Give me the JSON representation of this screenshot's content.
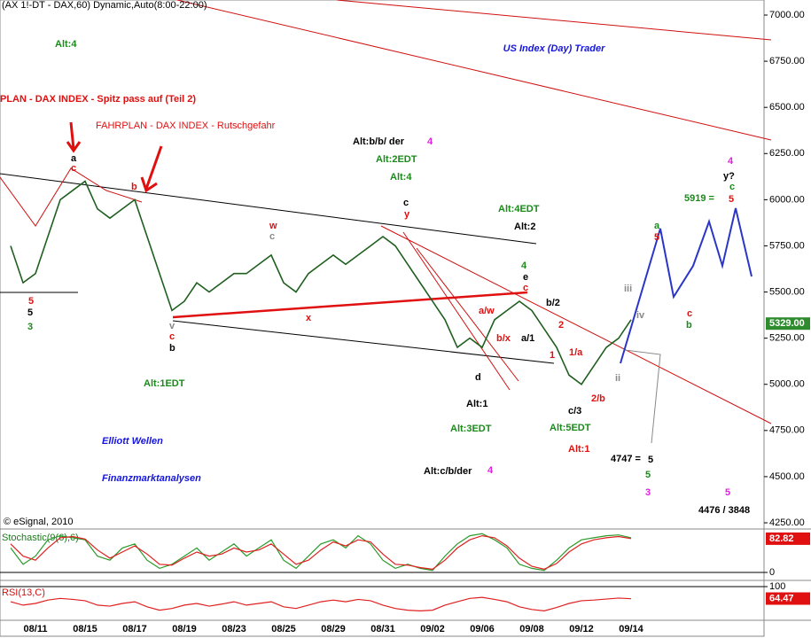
{
  "chart_data": [
    {
      "type": "line",
      "title": "(AX 1!-DT - DAX,60) Dynamic,Auto(8:00-22:00)",
      "categories": [
        null,
        null,
        "08/11",
        null,
        null,
        null,
        "08/15",
        null,
        null,
        null,
        "08/17",
        null,
        null,
        null,
        "08/19",
        null,
        null,
        null,
        "08/23",
        null,
        null,
        null,
        "08/25",
        null,
        null,
        null,
        "08/29",
        null,
        null,
        null,
        "08/31",
        null,
        null,
        null,
        "09/02",
        null,
        null,
        null,
        "09/06",
        null,
        null,
        null,
        "09/08",
        null,
        null,
        null,
        "09/12",
        null,
        null,
        null,
        "09/14"
      ],
      "values": [
        5750,
        5550,
        5600,
        5800,
        6000,
        6050,
        6100,
        5950,
        5900,
        5950,
        6000,
        5800,
        5600,
        5400,
        5450,
        5550,
        5500,
        5550,
        5600,
        5600,
        5650,
        5700,
        5550,
        5500,
        5600,
        5650,
        5700,
        5650,
        5700,
        5750,
        5800,
        5750,
        5650,
        5550,
        5450,
        5350,
        5200,
        5250,
        5200,
        5350,
        5400,
        5450,
        5400,
        5300,
        5200,
        5050,
        5000,
        5100,
        5200,
        5250,
        5350
      ],
      "color": "#1f5f1f",
      "ylim": [
        4250,
        7000
      ],
      "yticks": [
        {
          "value": 4250,
          "label": "4250.00"
        },
        {
          "value": 4500,
          "label": "4500.00"
        },
        {
          "value": 4750,
          "label": "4750.00"
        },
        {
          "value": 5000,
          "label": "5000.00"
        },
        {
          "value": 5250,
          "label": "5250.00"
        },
        {
          "value": 5500,
          "label": "5500.00"
        },
        {
          "value": 5750,
          "label": "5750.00"
        },
        {
          "value": 6000,
          "label": "6000.00"
        },
        {
          "value": 6250,
          "label": "6250.00"
        },
        {
          "value": 6500,
          "label": "6500.00"
        },
        {
          "value": 6750,
          "label": "6750.00"
        },
        {
          "value": 7000,
          "label": "7000.00"
        }
      ],
      "last_label": {
        "value": 5329,
        "label": "5329.00"
      },
      "annotations": [
        "Alt:4",
        "PLAN - DAX INDEX - Spitz pass auf (Teil 2)",
        "FAHRPLAN - DAX INDEX - Rutschgefahr",
        "US Index (Day) Trader",
        "Elliott Wellen",
        "Finanzmarktanalysen",
        "Alt:b/b/ der",
        "4",
        "Alt:2EDT",
        "Alt:4",
        "c",
        "y",
        "Alt:4EDT",
        "Alt:2",
        "4",
        "e",
        "c",
        "b/2",
        "a/w",
        "b/x",
        "a/1",
        "d",
        "Alt:1",
        "Alt:3EDT",
        "c/3",
        "Alt:5EDT",
        "Alt:1",
        "4747 =",
        "5",
        "5",
        "3",
        "5",
        "4476 / 3848",
        "Alt:c/b/der",
        "4",
        "Alt:1EDT",
        "4",
        "y?",
        "c",
        "5919 =",
        "5",
        "a",
        "c",
        "b",
        "5",
        "5",
        "3",
        "v",
        "c",
        "b",
        "x",
        "w",
        "c",
        "a",
        "5",
        "c",
        "b",
        "iv",
        "iii",
        "ii",
        "© eSignal, 2010",
        "1/a",
        "2/b",
        "2",
        "1"
      ]
    },
    {
      "type": "line",
      "title": "Stochastic(9(6),6)",
      "series": [
        {
          "color": "#2a9a2a",
          "values": [
            60,
            20,
            40,
            80,
            90,
            85,
            80,
            40,
            30,
            60,
            70,
            30,
            10,
            20,
            40,
            60,
            30,
            50,
            70,
            40,
            60,
            80,
            30,
            10,
            40,
            70,
            80,
            60,
            90,
            70,
            30,
            10,
            20,
            10,
            5,
            40,
            70,
            90,
            95,
            80,
            60,
            20,
            10,
            5,
            30,
            60,
            80,
            85,
            90,
            92,
            85
          ]
        },
        {
          "color": "#e02020",
          "values": [
            70,
            40,
            30,
            60,
            85,
            88,
            82,
            55,
            35,
            50,
            65,
            45,
            20,
            18,
            35,
            50,
            40,
            45,
            60,
            50,
            55,
            70,
            45,
            20,
            30,
            55,
            75,
            65,
            80,
            75,
            45,
            20,
            18,
            12,
            8,
            30,
            60,
            80,
            90,
            85,
            65,
            35,
            15,
            8,
            22,
            50,
            70,
            80,
            85,
            88,
            83
          ]
        }
      ],
      "ylim": [
        0,
        100
      ],
      "yticks": [
        0
      ],
      "last_label": {
        "value": 82.82,
        "label": "82.82"
      }
    },
    {
      "type": "line",
      "title": "RSI(13,C)",
      "series": [
        {
          "color": "#e02020",
          "values": [
            55,
            45,
            50,
            60,
            65,
            62,
            58,
            45,
            42,
            50,
            55,
            40,
            30,
            35,
            45,
            50,
            42,
            48,
            55,
            45,
            50,
            55,
            40,
            35,
            45,
            55,
            60,
            55,
            62,
            58,
            45,
            35,
            30,
            28,
            30,
            45,
            55,
            65,
            68,
            62,
            55,
            40,
            32,
            28,
            38,
            50,
            58,
            60,
            63,
            66,
            64
          ]
        }
      ],
      "ylim": [
        0,
        100
      ],
      "yticks": [
        100
      ],
      "last_label": {
        "value": 64.47,
        "label": "64.47"
      }
    }
  ]
}
